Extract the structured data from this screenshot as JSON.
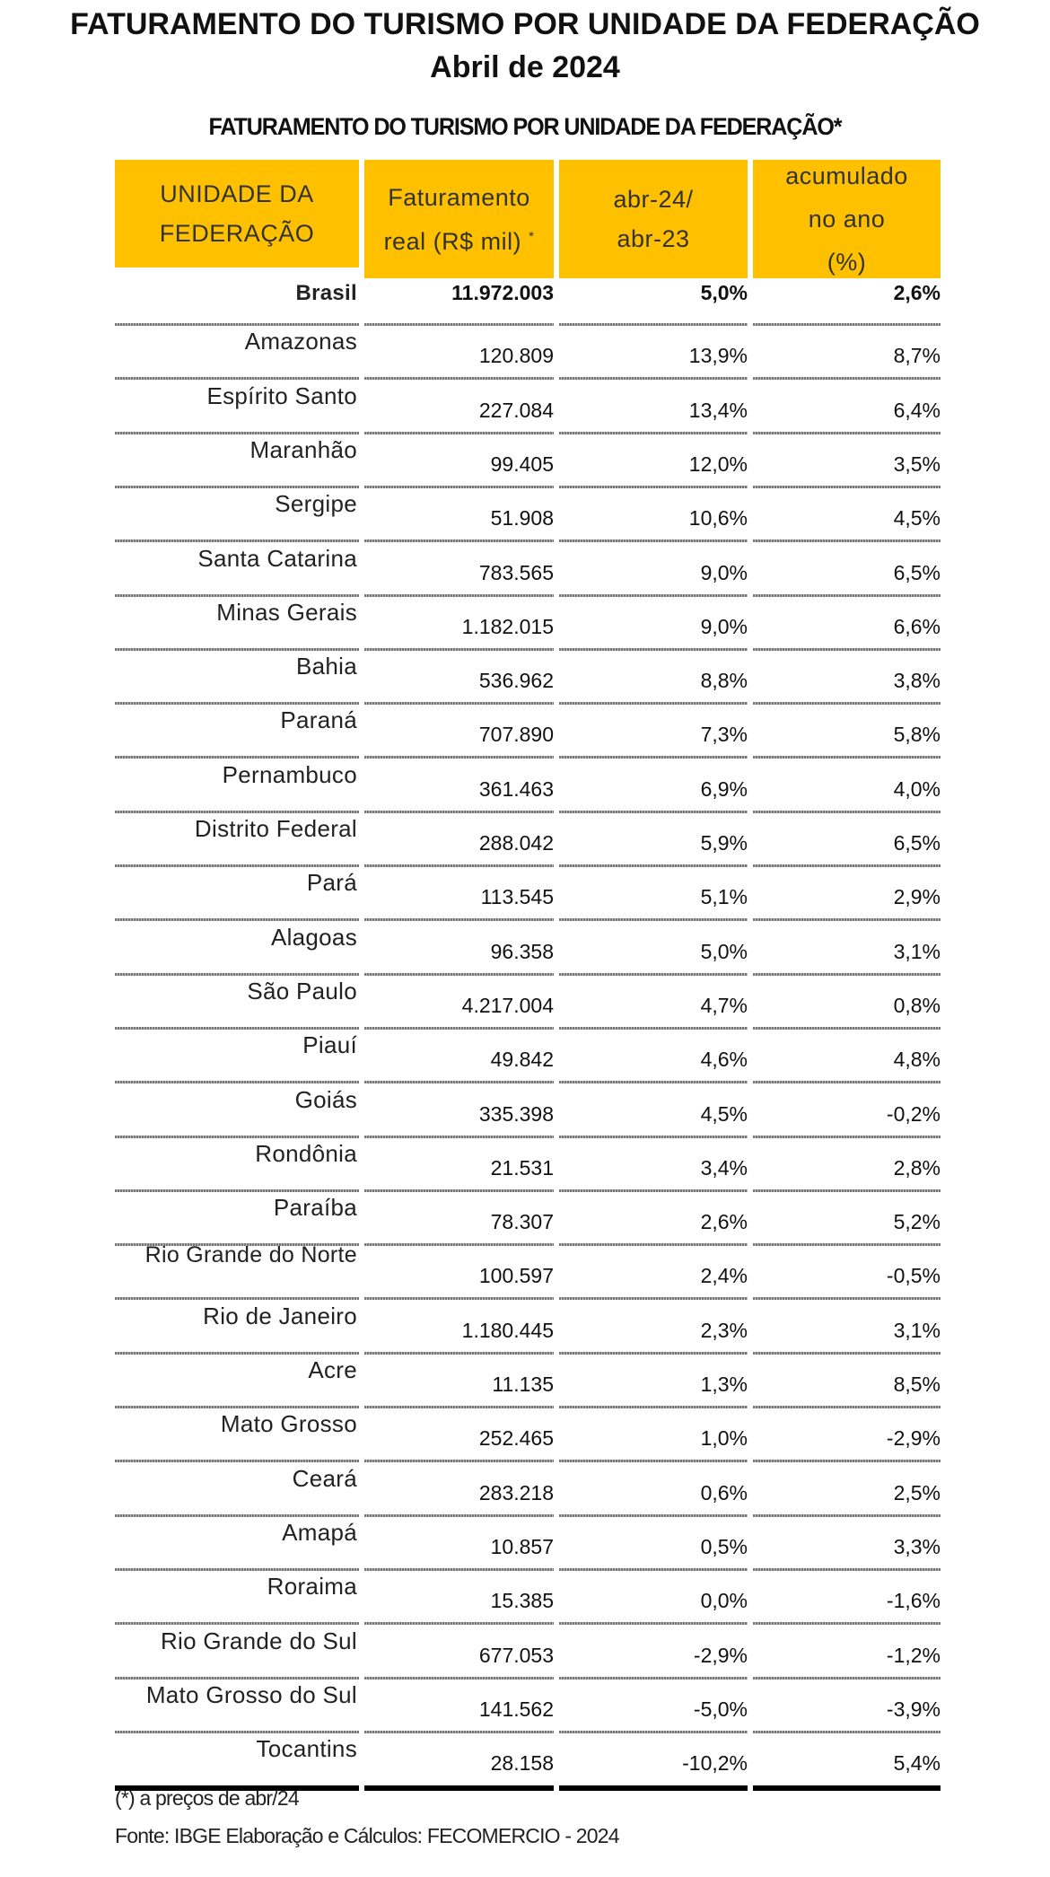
{
  "title": "FATURAMENTO DO TURISMO POR UNIDADE DA FEDERAÇÃO",
  "subtitle_date": "Abril de 2024",
  "table": {
    "caption": "FATURAMENTO DO TURISMO POR UNIDADE DA FEDERAÇÃO*",
    "header_color": "#FFC000",
    "headers": {
      "col0": [
        "UNIDADE DA",
        "FEDERAÇÃO"
      ],
      "col1": [
        "Faturamento",
        "real (R$ mil)",
        "*"
      ],
      "col2": [
        "abr-24/",
        "abr-23"
      ],
      "col3": [
        "acumulado",
        "no ano",
        "(%)"
      ]
    },
    "rows": [
      [
        "Brasil",
        "11.972.003",
        "5,0%",
        "2,6%"
      ],
      [
        "Amazonas",
        "120.809",
        "13,9%",
        "8,7%"
      ],
      [
        "Espírito Santo",
        "227.084",
        "13,4%",
        "6,4%"
      ],
      [
        "Maranhão",
        "99.405",
        "12,0%",
        "3,5%"
      ],
      [
        "Sergipe",
        "51.908",
        "10,6%",
        "4,5%"
      ],
      [
        "Santa Catarina",
        "783.565",
        "9,0%",
        "6,5%"
      ],
      [
        "Minas Gerais",
        "1.182.015",
        "9,0%",
        "6,6%"
      ],
      [
        "Bahia",
        "536.962",
        "8,8%",
        "3,8%"
      ],
      [
        "Paraná",
        "707.890",
        "7,3%",
        "5,8%"
      ],
      [
        "Pernambuco",
        "361.463",
        "6,9%",
        "4,0%"
      ],
      [
        "Distrito Federal",
        "288.042",
        "5,9%",
        "6,5%"
      ],
      [
        "Pará",
        "113.545",
        "5,1%",
        "2,9%"
      ],
      [
        "Alagoas",
        "96.358",
        "5,0%",
        "3,1%"
      ],
      [
        "São Paulo",
        "4.217.004",
        "4,7%",
        "0,8%"
      ],
      [
        "Piauí",
        "49.842",
        "4,6%",
        "4,8%"
      ],
      [
        "Goiás",
        "335.398",
        "4,5%",
        "-0,2%"
      ],
      [
        "Rondônia",
        "21.531",
        "3,4%",
        "2,8%"
      ],
      [
        "Paraíba",
        "78.307",
        "2,6%",
        "5,2%"
      ],
      [
        "Rio Grande do Norte",
        "100.597",
        "2,4%",
        "-0,5%"
      ],
      [
        "Rio de Janeiro",
        "1.180.445",
        "2,3%",
        "3,1%"
      ],
      [
        "Acre",
        "11.135",
        "1,3%",
        "8,5%"
      ],
      [
        "Mato Grosso",
        "252.465",
        "1,0%",
        "-2,9%"
      ],
      [
        "Ceará",
        "283.218",
        "0,6%",
        "2,5%"
      ],
      [
        "Amapá",
        "10.857",
        "0,5%",
        "3,3%"
      ],
      [
        "Roraima",
        "15.385",
        "0,0%",
        "-1,6%"
      ],
      [
        "Rio Grande do Sul",
        "677.053",
        "-2,9%",
        "-1,2%"
      ],
      [
        "Mato Grosso do Sul",
        "141.562",
        "-5,0%",
        "-3,9%"
      ],
      [
        "Tocantins",
        "28.158",
        "-10,2%",
        "5,4%"
      ]
    ]
  },
  "footnotes": {
    "note": "(*) a preços de abr/24",
    "source": "Fonte: IBGE Elaboração e Cálculos: FECOMERCIO - 2024"
  }
}
